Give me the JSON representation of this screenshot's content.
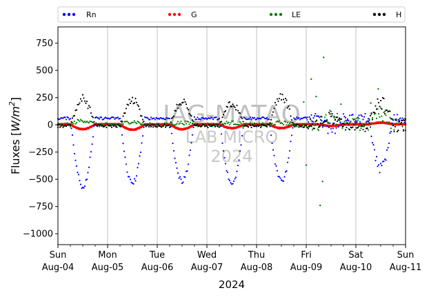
{
  "chart_data": {
    "type": "scatter",
    "title": "",
    "xlabel": "2024",
    "ylabel_main": "Fluxes [",
    "ylabel_unit": "W/m",
    "ylabel_sup": "2",
    "ylabel_close": "]",
    "ylim": [
      -1100,
      900
    ],
    "xlim": [
      0,
      7
    ],
    "grid": "vertical",
    "legend_placement": "top",
    "watermark": [
      "IAG-MATAO",
      "LAB MICRO",
      "2024"
    ],
    "ytick_values": [
      750,
      500,
      250,
      0,
      -250,
      -500,
      -750,
      -1000
    ],
    "ytick_labels": [
      "750",
      "500",
      "250",
      "0",
      "−250",
      "−500",
      "−750",
      "−1000"
    ],
    "xticks": [
      {
        "day": "Sun",
        "date": "Aug-04"
      },
      {
        "day": "Mon",
        "date": "Aug-05"
      },
      {
        "day": "Tue",
        "date": "Aug-06"
      },
      {
        "day": "Wed",
        "date": "Aug-07"
      },
      {
        "day": "Thu",
        "date": "Aug-08"
      },
      {
        "day": "Fri",
        "date": "Aug-09"
      },
      {
        "day": "Sat",
        "date": "Aug-10"
      },
      {
        "day": "Sun",
        "date": "Aug-11"
      }
    ],
    "series": [
      {
        "name": "Rn",
        "color": "#0000ff",
        "night": 60,
        "day_peak": [
          -560,
          -540,
          -520,
          -540,
          -520,
          -30,
          -390
        ],
        "noise": 12,
        "outliers": []
      },
      {
        "name": "G",
        "color": "#ff0000",
        "night": 5,
        "day_peak": [
          -40,
          -45,
          -40,
          -30,
          -30,
          -10,
          20
        ],
        "noise": 4,
        "outliers": []
      },
      {
        "name": "LE",
        "color": "#008000",
        "night": 0,
        "day_peak": [
          40,
          30,
          20,
          20,
          20,
          80,
          100
        ],
        "noise": 18,
        "outliers": [
          [
            5.1,
            420
          ],
          [
            5.35,
            620
          ],
          [
            5.33,
            -520
          ],
          [
            5.28,
            -740
          ],
          [
            5.2,
            260
          ],
          [
            4.95,
            210
          ],
          [
            5.0,
            -370
          ],
          [
            6.45,
            330
          ],
          [
            6.3,
            200
          ],
          [
            5.7,
            190
          ]
        ]
      },
      {
        "name": "H",
        "color": "#000000",
        "night": -10,
        "day_peak": [
          235,
          225,
          200,
          195,
          250,
          60,
          190
        ],
        "noise": 15,
        "outliers": []
      }
    ]
  }
}
